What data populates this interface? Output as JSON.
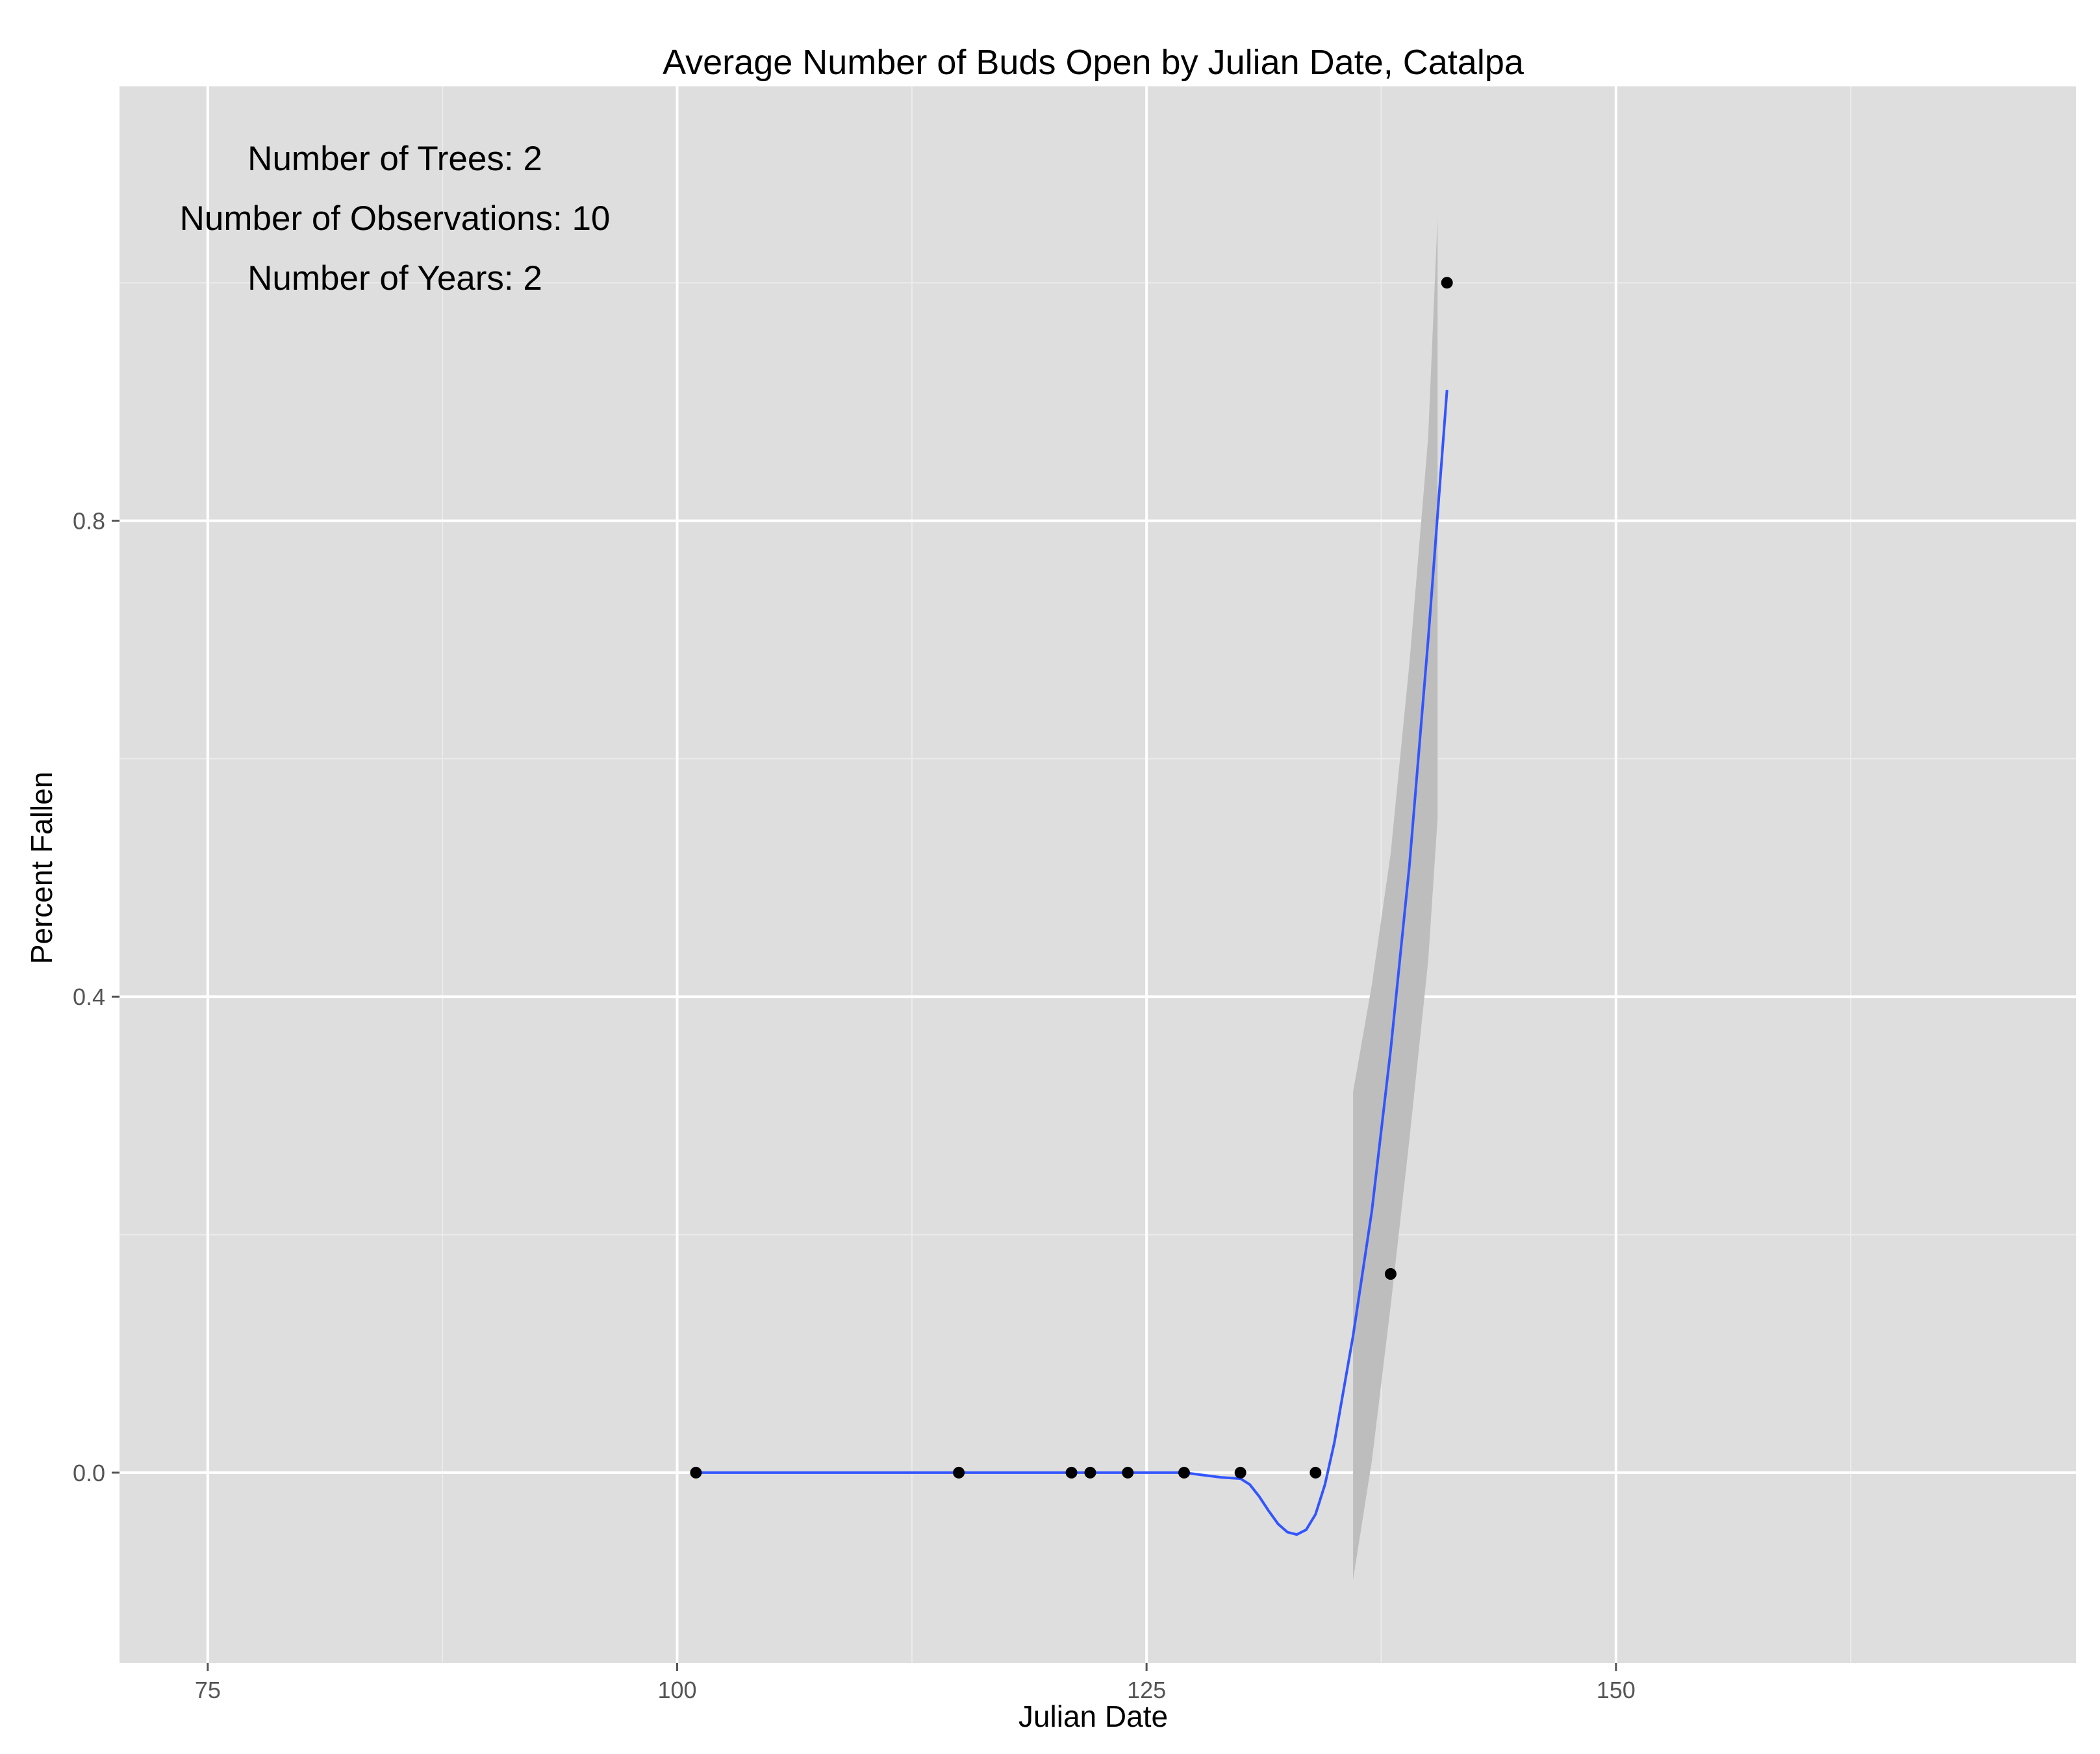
{
  "chart_data": {
    "type": "scatter",
    "title": "Average Number of Buds Open by Julian Date, Catalpa",
    "xlabel": "Julian Date",
    "ylabel": "Percent Fallen",
    "xlim": [
      70.3,
      174.5
    ],
    "ylim": [
      -0.16,
      1.165
    ],
    "x_ticks": [
      75,
      100,
      125,
      150
    ],
    "x_tick_labels": [
      "75",
      "100",
      "125",
      "150"
    ],
    "x_minor_ticks": [
      87.5,
      112.5,
      137.5,
      162.5
    ],
    "y_ticks": [
      0.0,
      0.4,
      0.8
    ],
    "y_tick_labels": [
      "0.0",
      "0.4",
      "0.8"
    ],
    "y_minor_ticks": [
      0.2,
      0.6,
      1.0
    ],
    "grid": true,
    "annotations": [
      "Number of Trees: 2",
      "Number of Observations: 10",
      "Number of Years: 2"
    ],
    "points": {
      "x": [
        101,
        115,
        121,
        122,
        124,
        127,
        130,
        134,
        138,
        141
      ],
      "y": [
        0,
        0,
        0,
        0,
        0,
        0,
        0,
        0,
        0.167,
        1.0
      ]
    },
    "smooth_line": {
      "x": [
        101,
        110,
        120,
        125,
        127,
        128,
        129,
        130,
        130.5,
        131,
        131.5,
        132,
        132.5,
        133,
        133.5,
        134,
        134.5,
        135,
        136,
        137,
        138,
        139,
        140,
        141
      ],
      "y": [
        0,
        0,
        0,
        0,
        0,
        -0.002,
        -0.004,
        -0.005,
        -0.01,
        -0.02,
        -0.032,
        -0.043,
        -0.05,
        -0.052,
        -0.048,
        -0.035,
        -0.01,
        0.025,
        0.115,
        0.22,
        0.355,
        0.51,
        0.7,
        0.91
      ]
    },
    "confidence_band": {
      "x": [
        136,
        137,
        138,
        139,
        140,
        140.5
      ],
      "upper": [
        0.32,
        0.41,
        0.52,
        0.68,
        0.87,
        1.055
      ],
      "lower": [
        -0.09,
        0.01,
        0.14,
        0.28,
        0.43,
        0.55
      ]
    },
    "colors": {
      "panel_background": "#dedede",
      "gridline_major": "#ffffff",
      "gridline_minor": "#ebebeb",
      "smooth_line": "#3355ff",
      "confidence_band": "#bdbdbd",
      "points": "#000000",
      "tick_label": "#555555",
      "text": "#000000"
    }
  }
}
